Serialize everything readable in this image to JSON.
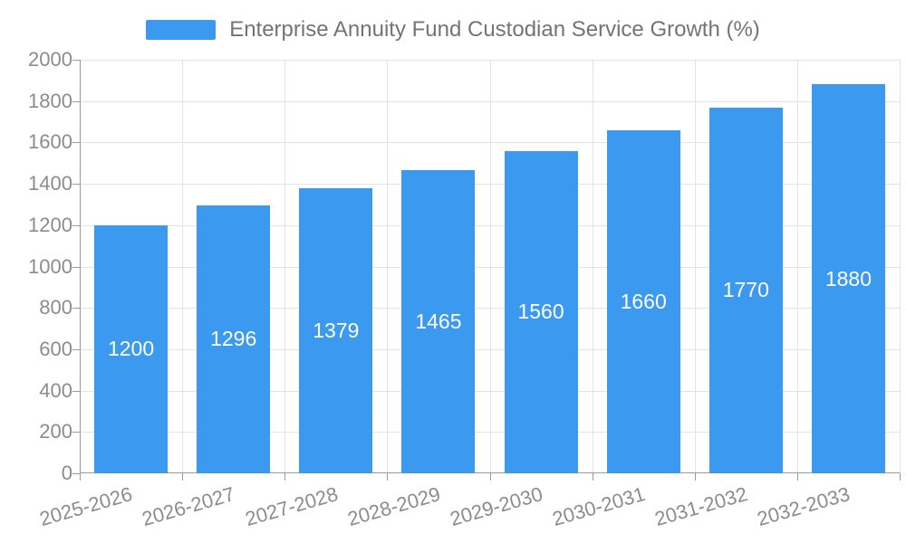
{
  "legend": {
    "entries": [
      "Enterprise Annuity Fund Custodian Service Growth (%)"
    ]
  },
  "chart_data": {
    "type": "bar",
    "title": "Enterprise Annuity Fund Custodian Service Growth (%)",
    "categories": [
      "2025-2026",
      "2026-2027",
      "2027-2028",
      "2028-2029",
      "2029-2030",
      "2030-2031",
      "2031-2032",
      "2032-2033"
    ],
    "values": [
      1200,
      1296,
      1379,
      1465,
      1560,
      1660,
      1770,
      1880
    ],
    "series_name": "Enterprise Annuity Fund Custodian Service Growth (%)",
    "xlabel": "",
    "ylabel": "",
    "ylim": [
      0,
      2000
    ],
    "yticks": [
      0,
      200,
      400,
      600,
      800,
      1000,
      1200,
      1400,
      1600,
      1800,
      2000
    ],
    "grid": true,
    "bar_labels_visible": true,
    "bar_label_position": "inside-center",
    "legend_position": "top-center",
    "x_label_rotation_deg": -16
  },
  "colors": {
    "bar": "#3B9AEF",
    "bar_label": "#FFFFFF",
    "axis_label": "#8C8C8C",
    "title_text": "#747474",
    "grid_line": "#E3E3E3",
    "axis_line": "#999999",
    "background": "#FFFFFF"
  }
}
